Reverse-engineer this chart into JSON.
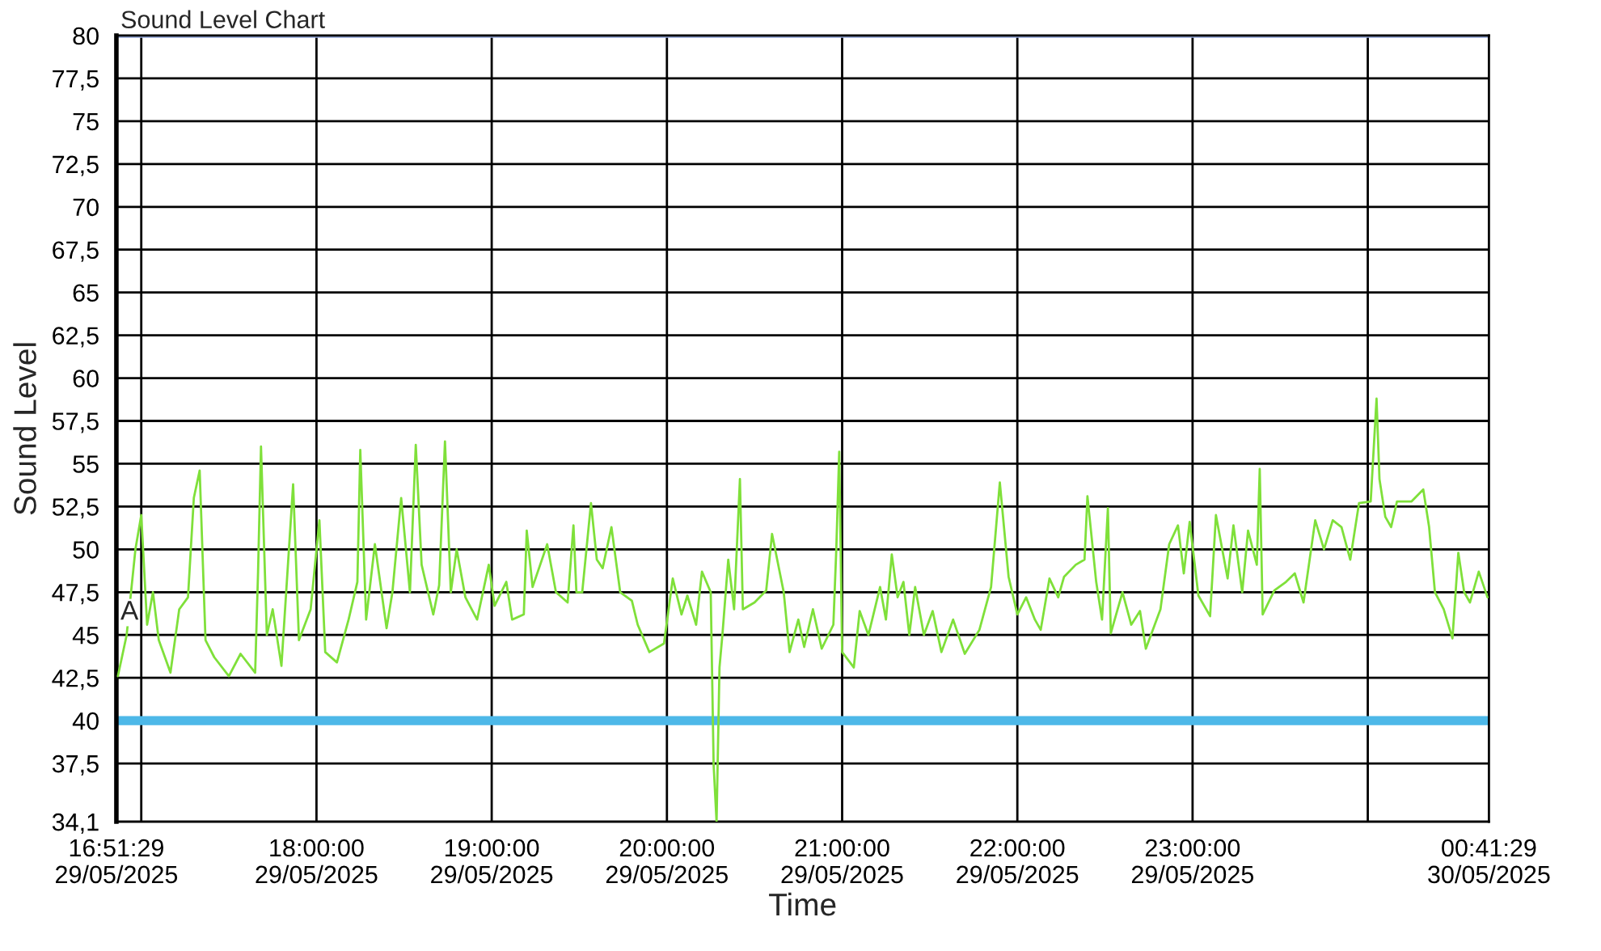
{
  "chart_data": {
    "type": "line",
    "title": "Sound Level Chart",
    "xlabel": "Time",
    "ylabel": "Sound Level",
    "xlim": [
      "2025-05-29T16:51:29",
      "2025-05-30T00:41:29"
    ],
    "xticks": [
      {
        "value": "2025-05-29T16:51:29",
        "label": "16:51:29\n29/05/2025"
      },
      {
        "value": "2025-05-29T17:00",
        "label": null
      },
      {
        "value": "2025-05-29T18:00",
        "label": "18:00:00\n29/05/2025"
      },
      {
        "value": "2025-05-29T19:00",
        "label": "19:00:00\n29/05/2025"
      },
      {
        "value": "2025-05-29T20:00",
        "label": "20:00:00\n29/05/2025"
      },
      {
        "value": "2025-05-29T21:00",
        "label": "21:00:00\n29/05/2025"
      },
      {
        "value": "2025-05-29T22:00",
        "label": "22:00:00\n29/05/2025"
      },
      {
        "value": "2025-05-29T23:00",
        "label": "23:00:00\n29/05/2025"
      },
      {
        "value": "2025-05-30T00:00",
        "label": null
      },
      {
        "value": "2025-05-30T00:41:29",
        "label": "00:41:29\n30/05/2025"
      }
    ],
    "ylim": [
      34.1,
      80
    ],
    "yticks": [
      {
        "value": 34.1,
        "label": "34,1"
      },
      {
        "value": 37.5,
        "label": "37,5"
      },
      40,
      {
        "value": 42.5,
        "label": "42,5"
      },
      45,
      {
        "value": 47.5,
        "label": "47,5"
      },
      50,
      {
        "value": 52.5,
        "label": "52,5"
      },
      55,
      {
        "value": 57.5,
        "label": "57,5"
      },
      60,
      {
        "value": 62.5,
        "label": "62,5"
      },
      65,
      {
        "value": 67.5,
        "label": "67,5"
      },
      70,
      {
        "value": 72.5,
        "label": "72,5"
      },
      75,
      {
        "value": 77.5,
        "label": "77,5"
      },
      80
    ],
    "grid": true,
    "legend": false,
    "marker": "none",
    "line_style": "solid",
    "ref_lines": [
      {
        "axis": "y",
        "value": 40,
        "color": "#4db8e8"
      },
      {
        "axis": "y",
        "value": 80,
        "color": "#8fa3d6"
      }
    ],
    "annotations": [
      "A"
    ],
    "series": [
      {
        "color": "#7fe03a",
        "x": [
          "2025-05-29T16:52",
          "2025-05-29T16:55",
          "2025-05-29T16:58",
          "2025-05-29T17:00",
          "2025-05-29T17:02",
          "2025-05-29T17:04",
          "2025-05-29T17:06",
          "2025-05-29T17:10",
          "2025-05-29T17:13",
          "2025-05-29T17:16",
          "2025-05-29T17:18",
          "2025-05-29T17:20",
          "2025-05-29T17:22",
          "2025-05-29T17:25",
          "2025-05-29T17:30",
          "2025-05-29T17:34",
          "2025-05-29T17:39",
          "2025-05-29T17:40",
          "2025-05-29T17:41",
          "2025-05-29T17:43",
          "2025-05-29T17:45",
          "2025-05-29T17:48",
          "2025-05-29T17:52",
          "2025-05-29T17:54",
          "2025-05-29T17:58",
          "2025-05-29T18:01",
          "2025-05-29T18:03",
          "2025-05-29T18:07",
          "2025-05-29T18:11",
          "2025-05-29T18:14",
          "2025-05-29T18:15",
          "2025-05-29T18:17",
          "2025-05-29T18:20",
          "2025-05-29T18:24",
          "2025-05-29T18:26",
          "2025-05-29T18:29",
          "2025-05-29T18:32",
          "2025-05-29T18:34",
          "2025-05-29T18:36",
          "2025-05-29T18:40",
          "2025-05-29T18:42",
          "2025-05-29T18:44",
          "2025-05-29T18:46",
          "2025-05-29T18:48",
          "2025-05-29T18:51",
          "2025-05-29T18:55",
          "2025-05-29T18:59",
          "2025-05-29T19:01",
          "2025-05-29T19:05",
          "2025-05-29T19:07",
          "2025-05-29T19:11",
          "2025-05-29T19:12",
          "2025-05-29T19:14",
          "2025-05-29T19:19",
          "2025-05-29T19:22",
          "2025-05-29T19:26",
          "2025-05-29T19:28",
          "2025-05-29T19:29",
          "2025-05-29T19:31",
          "2025-05-29T19:34",
          "2025-05-29T19:36",
          "2025-05-29T19:38",
          "2025-05-29T19:41",
          "2025-05-29T19:44",
          "2025-05-29T19:48",
          "2025-05-29T19:50",
          "2025-05-29T19:54",
          "2025-05-29T19:59",
          "2025-05-29T20:02",
          "2025-05-29T20:05",
          "2025-05-29T20:07",
          "2025-05-29T20:10",
          "2025-05-29T20:12",
          "2025-05-29T20:15",
          "2025-05-29T20:16",
          "2025-05-29T20:17",
          "2025-05-29T20:18",
          "2025-05-29T20:19",
          "2025-05-29T20:21",
          "2025-05-29T20:23",
          "2025-05-29T20:25",
          "2025-05-29T20:26",
          "2025-05-29T20:30",
          "2025-05-29T20:34",
          "2025-05-29T20:36",
          "2025-05-29T20:40",
          "2025-05-29T20:42",
          "2025-05-29T20:45",
          "2025-05-29T20:47",
          "2025-05-29T20:50",
          "2025-05-29T20:53",
          "2025-05-29T20:57",
          "2025-05-29T20:58",
          "2025-05-29T20:59",
          "2025-05-29T21:00",
          "2025-05-29T21:04",
          "2025-05-29T21:06",
          "2025-05-29T21:09",
          "2025-05-29T21:13",
          "2025-05-29T21:15",
          "2025-05-29T21:17",
          "2025-05-29T21:19",
          "2025-05-29T21:21",
          "2025-05-29T21:23",
          "2025-05-29T21:25",
          "2025-05-29T21:28",
          "2025-05-29T21:31",
          "2025-05-29T21:34",
          "2025-05-29T21:38",
          "2025-05-29T21:42",
          "2025-05-29T21:47",
          "2025-05-29T21:51",
          "2025-05-29T21:54",
          "2025-05-29T21:57",
          "2025-05-29T22:00",
          "2025-05-29T22:03",
          "2025-05-29T22:06",
          "2025-05-29T22:08",
          "2025-05-29T22:11",
          "2025-05-29T22:14",
          "2025-05-29T22:16",
          "2025-05-29T22:20",
          "2025-05-29T22:23",
          "2025-05-29T22:24",
          "2025-05-29T22:27",
          "2025-05-29T22:29",
          "2025-05-29T22:31",
          "2025-05-29T22:32",
          "2025-05-29T22:36",
          "2025-05-29T22:39",
          "2025-05-29T22:42",
          "2025-05-29T22:44",
          "2025-05-29T22:49",
          "2025-05-29T22:52",
          "2025-05-29T22:55",
          "2025-05-29T22:57",
          "2025-05-29T22:59",
          "2025-05-29T23:02",
          "2025-05-29T23:06",
          "2025-05-29T23:08",
          "2025-05-29T23:12",
          "2025-05-29T23:14",
          "2025-05-29T23:17",
          "2025-05-29T23:19",
          "2025-05-29T23:22",
          "2025-05-29T23:23",
          "2025-05-29T23:24",
          "2025-05-29T23:28",
          "2025-05-29T23:32",
          "2025-05-29T23:35",
          "2025-05-29T23:38",
          "2025-05-29T23:42",
          "2025-05-29T23:45",
          "2025-05-29T23:48",
          "2025-05-29T23:51",
          "2025-05-29T23:54",
          "2025-05-29T23:57",
          "2025-05-30T00:01",
          "2025-05-30T00:03",
          "2025-05-30T00:04",
          "2025-05-30T00:06",
          "2025-05-30T00:08",
          "2025-05-30T00:10",
          "2025-05-30T00:15",
          "2025-05-30T00:19",
          "2025-05-30T00:21",
          "2025-05-30T00:23",
          "2025-05-30T00:26",
          "2025-05-30T00:29",
          "2025-05-30T00:31",
          "2025-05-30T00:33",
          "2025-05-30T00:35",
          "2025-05-30T00:38",
          "2025-05-30T00:41"
        ],
        "values": [
          42.6,
          45.0,
          50.0,
          52.0,
          45.6,
          47.5,
          44.7,
          42.8,
          46.5,
          47.2,
          53.0,
          54.6,
          44.7,
          43.7,
          42.6,
          43.9,
          42.8,
          48.7,
          56.0,
          45.0,
          46.5,
          43.2,
          53.8,
          44.7,
          46.5,
          51.7,
          44.0,
          43.4,
          45.9,
          48.1,
          55.8,
          45.9,
          50.3,
          45.4,
          47.5,
          53.0,
          47.5,
          56.1,
          49.1,
          46.2,
          47.9,
          56.3,
          47.5,
          50.0,
          47.2,
          45.9,
          49.1,
          46.7,
          48.1,
          45.9,
          46.2,
          51.1,
          47.8,
          50.3,
          47.5,
          46.9,
          51.4,
          47.5,
          47.5,
          52.7,
          49.4,
          48.9,
          51.3,
          47.5,
          47.0,
          45.6,
          44.0,
          44.5,
          48.3,
          46.2,
          47.3,
          45.6,
          48.7,
          47.5,
          37.4,
          34.1,
          43.1,
          45.0,
          49.4,
          46.5,
          54.1,
          46.5,
          46.9,
          47.6,
          50.9,
          47.5,
          44.0,
          45.9,
          44.3,
          46.5,
          44.2,
          45.6,
          50.0,
          55.7,
          44.0,
          43.1,
          46.4,
          45.0,
          47.8,
          45.9,
          49.7,
          47.2,
          48.1,
          45.0,
          47.8,
          45.0,
          46.4,
          44.0,
          45.9,
          43.9,
          45.3,
          47.8,
          53.9,
          48.4,
          46.2,
          47.2,
          45.9,
          45.3,
          48.3,
          47.2,
          48.4,
          49.1,
          49.4,
          53.1,
          48.1,
          45.9,
          52.4,
          45.1,
          47.5,
          45.6,
          46.4,
          44.2,
          46.5,
          50.3,
          51.4,
          48.6,
          51.6,
          47.3,
          46.1,
          52.0,
          48.3,
          51.4,
          47.5,
          51.1,
          49.1,
          54.7,
          46.2,
          47.6,
          48.1,
          48.6,
          46.9,
          51.7,
          50.0,
          51.7,
          51.3,
          49.4,
          52.7,
          52.8,
          58.8,
          54.1,
          51.9,
          51.3,
          52.8,
          52.8,
          53.5,
          51.3,
          47.5,
          46.5,
          44.8,
          49.8,
          47.5,
          46.9,
          48.7,
          47.2
        ]
      }
    ]
  }
}
